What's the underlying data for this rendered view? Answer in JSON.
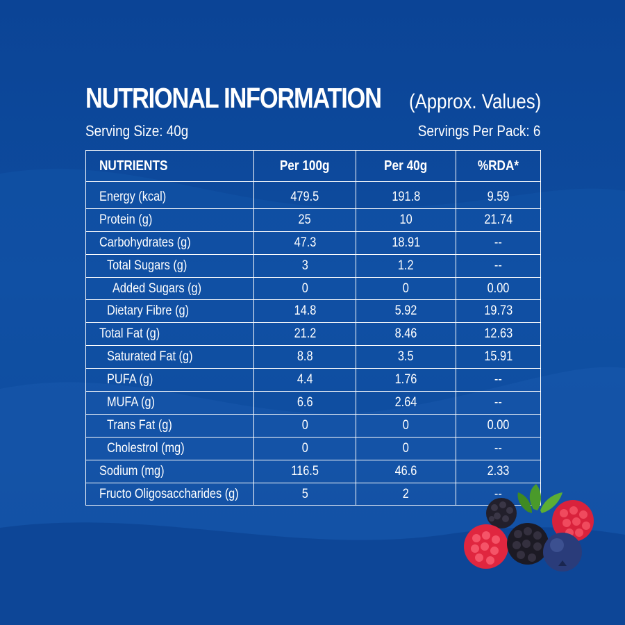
{
  "title": {
    "main": "NUTRIONAL INFORMATION",
    "sub": "(Approx. Values)"
  },
  "serving": {
    "size": "Serving Size: 40g",
    "per_pack": "Servings Per Pack: 6"
  },
  "table": {
    "headers": [
      "NUTRIENTS",
      "Per 100g",
      "Per 40g",
      "%RDA*"
    ],
    "rows": [
      {
        "name": "Energy (kcal)",
        "per100": "479.5",
        "per40": "191.8",
        "rda": "9.59",
        "level": 0
      },
      {
        "name": "Protein (g)",
        "per100": "25",
        "per40": "10",
        "rda": "21.74",
        "level": 0
      },
      {
        "name": "Carbohydrates (g)",
        "per100": "47.3",
        "per40": "18.91",
        "rda": "--",
        "level": 0
      },
      {
        "name": "Total Sugars (g)",
        "per100": "3",
        "per40": "1.2",
        "rda": "--",
        "level": 1
      },
      {
        "name": "Added Sugars (g)",
        "per100": "0",
        "per40": "0",
        "rda": "0.00",
        "level": 2
      },
      {
        "name": "Dietary Fibre (g)",
        "per100": "14.8",
        "per40": "5.92",
        "rda": "19.73",
        "level": 1
      },
      {
        "name": "Total Fat (g)",
        "per100": "21.2",
        "per40": "8.46",
        "rda": "12.63",
        "level": 0
      },
      {
        "name": "Saturated Fat (g)",
        "per100": "8.8",
        "per40": "3.5",
        "rda": "15.91",
        "level": 1
      },
      {
        "name": "PUFA (g)",
        "per100": "4.4",
        "per40": "1.76",
        "rda": "--",
        "level": 1
      },
      {
        "name": "MUFA (g)",
        "per100": "6.6",
        "per40": "2.64",
        "rda": "--",
        "level": 1
      },
      {
        "name": "Trans Fat (g)",
        "per100": "0",
        "per40": "0",
        "rda": "0.00",
        "level": 1
      },
      {
        "name": "Cholestrol (mg)",
        "per100": "0",
        "per40": "0",
        "rda": "--",
        "level": 1
      },
      {
        "name": "Sodium (mg)",
        "per100": "116.5",
        "per40": "46.6",
        "rda": "2.33",
        "level": 0
      },
      {
        "name": "Fructo Oligosaccharides (g)",
        "per100": "5",
        "per40": "2",
        "rda": "--",
        "level": 0
      }
    ]
  },
  "decoration": {
    "image": "mixed-berries-icon",
    "colors": {
      "background": "#0d4a9b",
      "wave": "#1a5cb0",
      "raspberry": "#e0263f",
      "blackberry": "#1c1a24",
      "blueberry": "#2a3c7a",
      "leaf": "#4a9a2a"
    }
  }
}
